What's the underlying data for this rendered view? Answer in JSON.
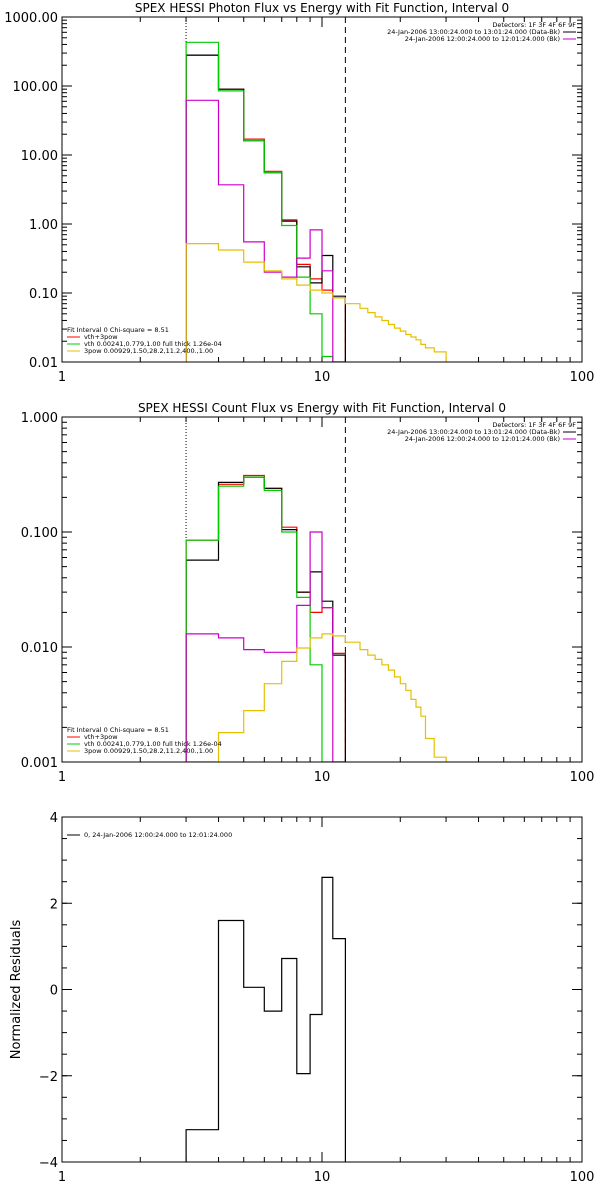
{
  "chart_data": [
    {
      "type": "line",
      "title": "SPEX HESSI Photon Flux vs Energy with Fit Function, Interval 0",
      "xscale": "log",
      "yscale": "log",
      "xlim": [
        1,
        100
      ],
      "ylim": [
        0.01,
        1000
      ],
      "xticks": [
        "1",
        "10",
        "100"
      ],
      "yticks": [
        "1000.00",
        "100.00",
        "10.00",
        "1.00",
        "0.10",
        "0.01"
      ],
      "ytick_values": [
        1000,
        100,
        10,
        1,
        0.1,
        0.01
      ],
      "vlines": [
        {
          "x": 3,
          "style": "dotted"
        },
        {
          "x": 12.3,
          "style": "dashed"
        }
      ],
      "legend_right": [
        {
          "text": "Detectors: 1F 3F 4F 6F 9F",
          "color": ""
        },
        {
          "text": "24-Jan-2006 13:00:24.000 to 13:01:24.000 (Data-Bk)",
          "color": "#000000"
        },
        {
          "text": "24-Jan-2006 12:00:24.000 to 12:01:24.000 (Bk)",
          "color": "#cc00cc"
        }
      ],
      "legend_left": [
        {
          "text": "Fit Interval 0   Chi-square = 8.51",
          "color": ""
        },
        {
          "text": "vth+3pow",
          "color": "#ff0000"
        },
        {
          "text": "vth 0.00241,0.779,1.00  full thick 1.26e-04",
          "color": "#00cc00"
        },
        {
          "text": "3pow 0.00929,1.50,28.2,11.2,400.,1.00",
          "color": "#e6c000"
        }
      ],
      "edges": [
        3,
        4,
        5,
        6,
        7,
        8,
        9,
        10,
        11,
        12.3,
        14,
        15,
        16,
        17,
        18,
        19,
        20,
        21,
        22,
        23,
        24,
        25,
        27,
        30
      ],
      "series": [
        {
          "color": "#ff0000",
          "values": [
            280,
            90,
            17,
            5.8,
            1.15,
            0.26,
            0.16,
            0.11,
            0.085
          ]
        },
        {
          "color": "#000000",
          "values": [
            280,
            90,
            16,
            5.5,
            1.1,
            0.24,
            0.14,
            0.35,
            0.09
          ]
        },
        {
          "color": "#00cc00",
          "values": [
            430,
            85,
            16,
            5.5,
            0.95,
            0.17,
            0.05,
            0.012,
            0.01
          ]
        },
        {
          "color": "#cc00cc",
          "values": [
            62,
            3.7,
            0.55,
            0.2,
            0.17,
            0.32,
            0.82,
            0.21,
            0.01
          ]
        },
        {
          "color": "#e6c000",
          "values": [
            0.52,
            0.42,
            0.28,
            0.21,
            0.16,
            0.13,
            0.11,
            0.1,
            0.085,
            0.07,
            0.06,
            0.052,
            0.045,
            0.04,
            0.035,
            0.031,
            0.028,
            0.025,
            0.023,
            0.021,
            0.018,
            0.016,
            0.014
          ]
        }
      ]
    },
    {
      "type": "line",
      "title": "SPEX HESSI Count Flux vs Energy with Fit Function, Interval 0",
      "xscale": "log",
      "yscale": "log",
      "xlim": [
        1,
        100
      ],
      "ylim": [
        0.001,
        1
      ],
      "xticks": [
        "1",
        "10",
        "100"
      ],
      "yticks": [
        "1.000",
        "0.100",
        "0.010",
        "0.001"
      ],
      "ytick_values": [
        1,
        0.1,
        0.01,
        0.001
      ],
      "vlines": [
        {
          "x": 3,
          "style": "dotted"
        },
        {
          "x": 12.3,
          "style": "dashed"
        }
      ],
      "legend_right": [
        {
          "text": "Detectors: 1F 3F 4F 6F 9F",
          "color": ""
        },
        {
          "text": "24-Jan-2006 13:00:24.000 to 13:01:24.000 (Data-Bk)",
          "color": "#000000"
        },
        {
          "text": "24-Jan-2006 12:00:24.000 to 12:01:24.000 (Bk)",
          "color": "#cc00cc"
        }
      ],
      "legend_left": [
        {
          "text": "Fit Interval 0   Chi-square = 8.51",
          "color": ""
        },
        {
          "text": "vth+3pow",
          "color": "#ff0000"
        },
        {
          "text": "vth 0.00241,0.779,1.00  full thick 1.26e-04",
          "color": "#00cc00"
        },
        {
          "text": "3pow 0.00929,1.50,28.2,11.2,400.,1.00",
          "color": "#e6c000"
        }
      ],
      "edges": [
        3,
        4,
        5,
        6,
        7,
        8,
        9,
        10,
        11,
        12.3,
        14,
        15,
        16,
        17,
        18,
        19,
        20,
        21,
        22,
        23,
        24,
        25,
        27,
        30
      ],
      "series": [
        {
          "color": "#ff0000",
          "values": [
            0.085,
            0.26,
            0.31,
            0.24,
            0.11,
            0.03,
            0.02,
            0.022,
            0.0088
          ]
        },
        {
          "color": "#000000",
          "values": [
            0.057,
            0.27,
            0.3,
            0.24,
            0.105,
            0.03,
            0.045,
            0.025,
            0.0085
          ]
        },
        {
          "color": "#00cc00",
          "values": [
            0.085,
            0.25,
            0.3,
            0.23,
            0.1,
            0.027,
            0.007,
            0.0009,
            0.0009
          ]
        },
        {
          "color": "#cc00cc",
          "values": [
            0.013,
            0.012,
            0.0095,
            0.009,
            0.009,
            0.023,
            0.1,
            0.022,
            0.0009
          ]
        },
        {
          "color": "#e6c000",
          "values": [
            0.001,
            0.0018,
            0.0028,
            0.0048,
            0.0075,
            0.0098,
            0.012,
            0.013,
            0.0125,
            0.011,
            0.0095,
            0.0085,
            0.0078,
            0.007,
            0.0063,
            0.0055,
            0.0048,
            0.0042,
            0.0035,
            0.003,
            0.0025,
            0.0016,
            0.0011
          ]
        }
      ]
    },
    {
      "type": "line",
      "title": "",
      "xscale": "log",
      "yscale": "linear",
      "xlim": [
        1,
        100
      ],
      "ylim": [
        -4,
        4
      ],
      "xticks": [
        "1",
        "10",
        "100"
      ],
      "yticks": [
        "4",
        "2",
        "0",
        "−2",
        "−4"
      ],
      "ytick_values": [
        4,
        2,
        0,
        -2,
        -4
      ],
      "ylabel": "Normalized Residuals",
      "legend_left": [
        {
          "text": "0, 24-Jan-2006 12:00:24.000 to 12:01:24.000",
          "color": "#000000"
        }
      ],
      "edges": [
        3,
        4,
        5,
        6,
        7,
        8,
        9,
        10,
        11,
        12.3
      ],
      "series": [
        {
          "color": "#000000",
          "values": [
            -3.25,
            1.6,
            0.05,
            -0.5,
            0.72,
            -1.95,
            -0.58,
            2.6,
            1.18
          ]
        }
      ]
    }
  ]
}
